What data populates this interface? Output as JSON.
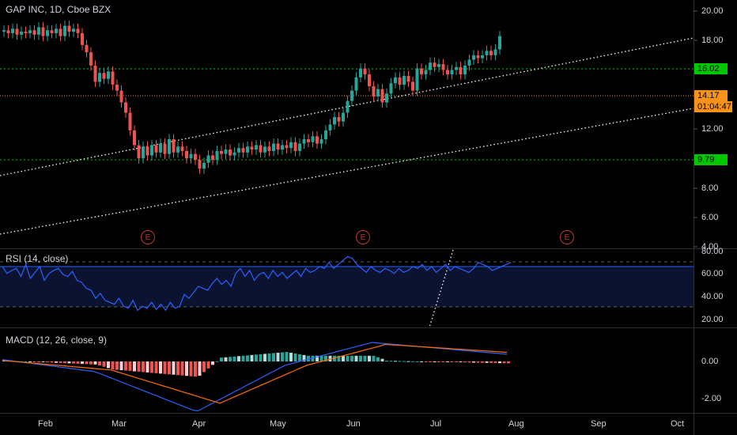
{
  "header": {
    "title": "GAP INC, 1D, Cboe BZX",
    "rsi_label": "RSI (14, close)",
    "macd_label": "MACD (12, 26, close, 9)"
  },
  "price_axis": {
    "labels": [
      "20.00",
      "18.00",
      "14.17",
      "12.00",
      "8.00",
      "6.00",
      "4.00"
    ],
    "tags": {
      "resistance": "16.02",
      "current_price": "14.17",
      "countdown": "01:04:47",
      "support": "9.79"
    }
  },
  "rsi_axis": {
    "labels": [
      "80.00",
      "60.00",
      "40.00",
      "20.00"
    ]
  },
  "macd_axis": {
    "labels": [
      "0.00",
      "-2.00"
    ]
  },
  "time_axis": {
    "labels": [
      "Feb",
      "Mar",
      "Apr",
      "May",
      "Jun",
      "Jul",
      "Aug",
      "Sep",
      "Oct"
    ]
  },
  "earnings_badge": "E",
  "colors": {
    "up": "#26a69a",
    "down": "#ef5350",
    "channel": "#ffffff",
    "support_line": "#00c800",
    "price_line": "#f7931a",
    "rsi": "#2962ff",
    "macd": "#2962ff",
    "signal": "#ff6d00"
  }
}
